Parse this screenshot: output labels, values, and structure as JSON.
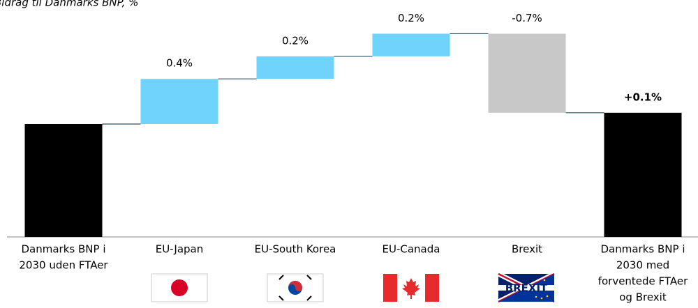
{
  "chart_data": {
    "type": "waterfall",
    "title": "Bidrag til Danmarks BNP, %",
    "categories": [
      [
        "Danmarks BNP i",
        "2030 uden FTAer"
      ],
      [
        "EU-Japan"
      ],
      [
        "EU-South Korea"
      ],
      [
        "EU-Canada"
      ],
      [
        "Brexit"
      ],
      [
        "Danmarks BNP i",
        "2030 med",
        "forventede FTAer",
        "og Brexit"
      ]
    ],
    "measures": [
      "absolute",
      "relative",
      "relative",
      "relative",
      "relative",
      "total"
    ],
    "values": [
      1.0,
      0.4,
      0.2,
      0.2,
      -0.7,
      0.1
    ],
    "value_labels": [
      null,
      "0.4%",
      "0.2%",
      "0.2%",
      "-0.7%",
      "+0.1%"
    ],
    "colors": {
      "total": "#000000",
      "increase": "#6fd3fb",
      "decrease": "#c8c8c8",
      "connector": "#2f4f5f"
    },
    "flag_text": "BREXIT"
  }
}
